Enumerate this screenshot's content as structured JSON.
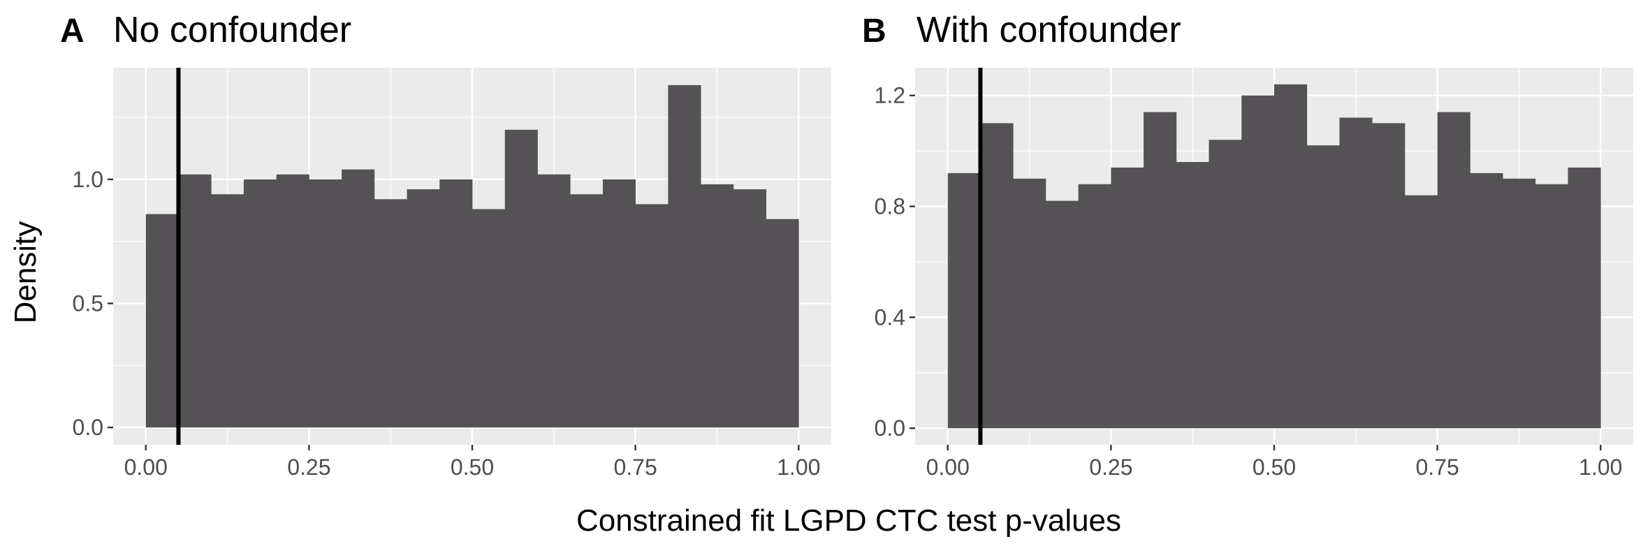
{
  "colors": {
    "panel_bg": "#ebebeb",
    "grid": "#ffffff",
    "bar_fill": "#545254",
    "reference_line": "#000000",
    "tick_text": "#4d4d4d"
  },
  "shared_xlabel": "Constrained fit LGPD CTC test p-values",
  "shared_ylabel": "Density",
  "chart_data": [
    {
      "type": "bar",
      "panel": "A",
      "title": "No confounder",
      "xlim": [
        -0.05,
        1.05
      ],
      "ylim": [
        -0.07,
        1.45
      ],
      "xticks": [
        0.0,
        0.25,
        0.5,
        0.75,
        1.0
      ],
      "xtick_labels": [
        "0.00",
        "0.25",
        "0.50",
        "0.75",
        "1.00"
      ],
      "yticks": [
        0.0,
        0.5,
        1.0
      ],
      "ytick_labels": [
        "0.0",
        "0.5",
        "1.0"
      ],
      "bin_width": 0.05,
      "bin_starts": [
        0.0,
        0.05,
        0.1,
        0.15,
        0.2,
        0.25,
        0.3,
        0.35,
        0.4,
        0.45,
        0.5,
        0.55,
        0.6,
        0.65,
        0.7,
        0.75,
        0.8,
        0.85,
        0.9,
        0.95
      ],
      "values": [
        0.86,
        1.02,
        0.94,
        1.0,
        1.02,
        1.0,
        1.04,
        0.92,
        0.96,
        1.0,
        0.88,
        1.2,
        1.02,
        0.94,
        1.0,
        0.9,
        1.38,
        0.98,
        0.96,
        0.84
      ],
      "reference_x": 0.05,
      "grid": true
    },
    {
      "type": "bar",
      "panel": "B",
      "title": "With confounder",
      "xlim": [
        -0.05,
        1.05
      ],
      "ylim": [
        -0.06,
        1.3
      ],
      "xticks": [
        0.0,
        0.25,
        0.5,
        0.75,
        1.0
      ],
      "xtick_labels": [
        "0.00",
        "0.25",
        "0.50",
        "0.75",
        "1.00"
      ],
      "yticks": [
        0.0,
        0.4,
        0.8,
        1.2
      ],
      "ytick_labels": [
        "0.0",
        "0.4",
        "0.8",
        "1.2"
      ],
      "bin_width": 0.05,
      "bin_starts": [
        0.0,
        0.05,
        0.1,
        0.15,
        0.2,
        0.25,
        0.3,
        0.35,
        0.4,
        0.45,
        0.5,
        0.55,
        0.6,
        0.65,
        0.7,
        0.75,
        0.8,
        0.85,
        0.9,
        0.95
      ],
      "values": [
        0.92,
        1.1,
        0.9,
        0.82,
        0.88,
        0.94,
        1.14,
        0.96,
        1.04,
        1.2,
        1.24,
        1.02,
        1.12,
        1.1,
        0.84,
        1.14,
        0.92,
        0.9,
        0.88,
        0.94
      ],
      "reference_x": 0.05,
      "grid": true
    }
  ]
}
